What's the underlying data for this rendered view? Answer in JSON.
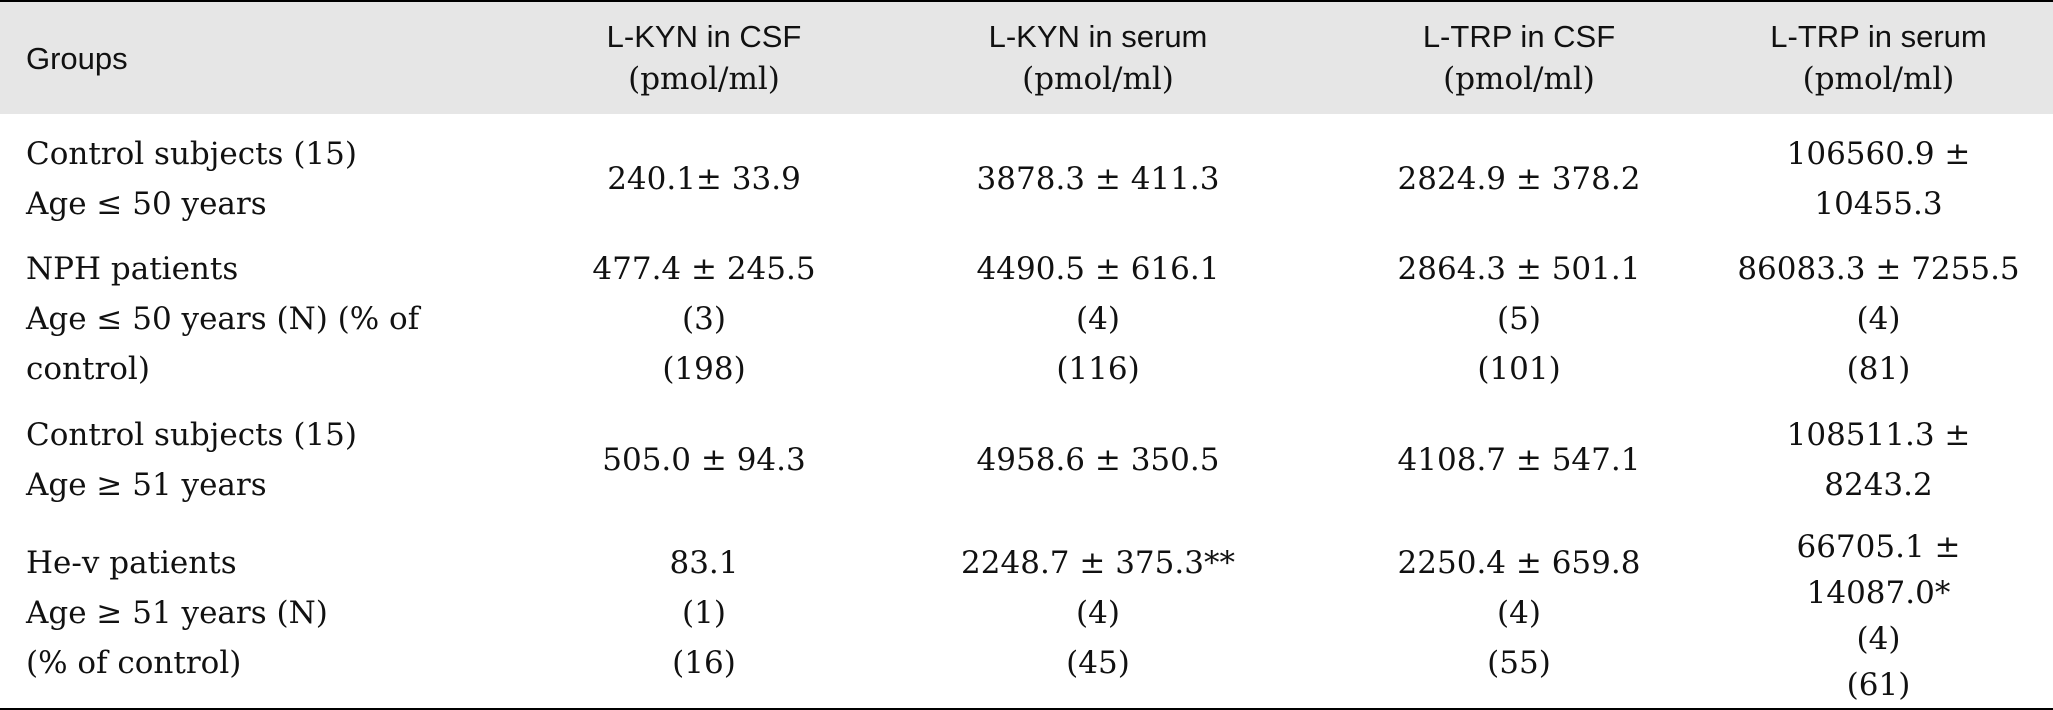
{
  "table": {
    "headers": [
      {
        "line1": "Groups",
        "line2": ""
      },
      {
        "line1": "L-KYN in CSF",
        "line2": "(pmol/ml)"
      },
      {
        "line1": "L-KYN in serum",
        "line2": "(pmol/ml)"
      },
      {
        "line1": "L-TRP in CSF",
        "line2": "(pmol/ml)"
      },
      {
        "line1": "L-TRP in serum",
        "line2": "(pmol/ml)"
      }
    ],
    "rows": [
      {
        "group": [
          "Control subjects (15)",
          "Age ≤ 50 years"
        ],
        "kyn_csf": [
          "240.1± 33.9"
        ],
        "kyn_serum": [
          "3878.3 ± 411.3"
        ],
        "trp_csf": [
          "2824.9 ± 378.2"
        ],
        "trp_serum": [
          "106560.9 ±",
          "10455.3"
        ]
      },
      {
        "group": [
          "NPH patients",
          "Age ≤ 50 years (N) (% of",
          "control)"
        ],
        "kyn_csf": [
          "477.4 ± 245.5",
          "(3)",
          "(198)"
        ],
        "kyn_serum": [
          "4490.5 ± 616.1",
          "(4)",
          "(116)"
        ],
        "trp_csf": [
          "2864.3 ± 501.1",
          "(5)",
          "(101)"
        ],
        "trp_serum": [
          "86083.3 ± 7255.5",
          "(4)",
          "(81)"
        ]
      },
      {
        "group": [
          "Control subjects (15)",
          "Age ≥ 51 years"
        ],
        "kyn_csf": [
          "505.0 ± 94.3"
        ],
        "kyn_serum": [
          "4958.6 ± 350.5"
        ],
        "trp_csf": [
          "4108.7 ± 547.1"
        ],
        "trp_serum": [
          "108511.3 ±",
          "8243.2"
        ]
      },
      {
        "group": [
          "He-v patients",
          "Age ≥ 51 years (N)",
          "(% of control)"
        ],
        "kyn_csf": [
          "83.1",
          "(1)",
          "(16)"
        ],
        "kyn_serum": [
          "2248.7 ± 375.3**",
          "(4)",
          "(45)"
        ],
        "trp_csf": [
          "2250.4 ± 659.8",
          "(4)",
          "(55)"
        ],
        "trp_serum": [
          "66705.1 ±",
          "14087.0*",
          "(4)",
          "(61)"
        ]
      }
    ]
  }
}
